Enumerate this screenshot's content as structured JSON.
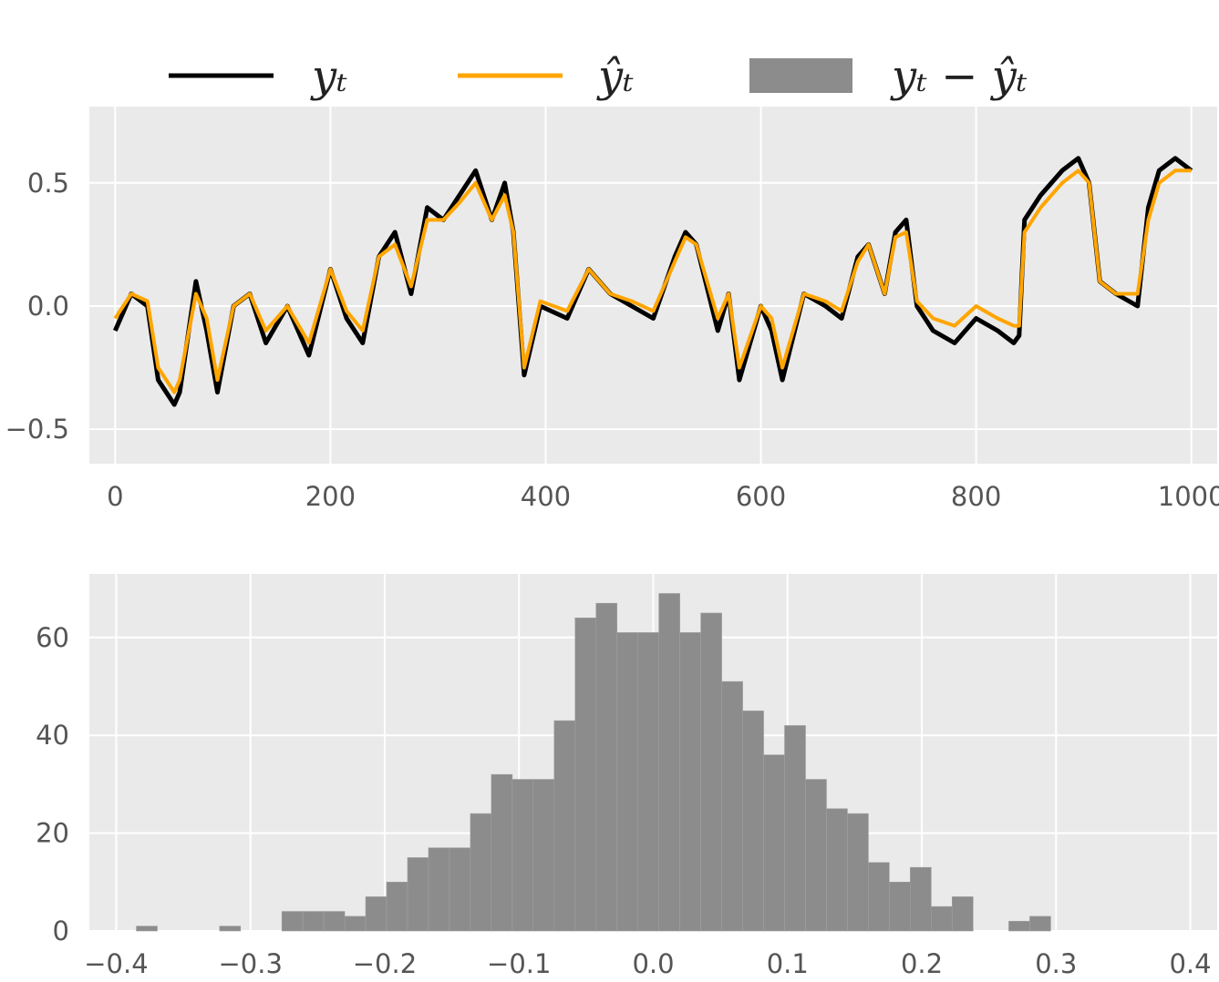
{
  "legend": {
    "items": [
      {
        "label": "yₜ",
        "color": "#000000",
        "kind": "line"
      },
      {
        "label": "ŷₜ",
        "color": "#FFA500",
        "kind": "line"
      },
      {
        "label": "yₜ − ŷₜ",
        "color": "#8C8C8C",
        "kind": "patch"
      }
    ]
  },
  "colors": {
    "panel_bg": "#EAEAEA",
    "grid": "#FFFFFF",
    "observed": "#000000",
    "predicted": "#FFA500",
    "hist": "#8C8C8C"
  },
  "chart_data": [
    {
      "type": "line",
      "grid": true,
      "xlim": [
        -24,
        1024
      ],
      "ylim": [
        -0.64,
        0.81
      ],
      "xticks": [
        0,
        200,
        400,
        600,
        800,
        1000
      ],
      "xtick_labels": [
        "0",
        "200",
        "400",
        "600",
        "800",
        "1000"
      ],
      "yticks": [
        -0.5,
        0.0,
        0.5
      ],
      "ytick_labels": [
        "−0.5",
        "0.0",
        "0.5"
      ],
      "series": [
        {
          "name": "yₜ",
          "color": "#000000",
          "x": [
            0,
            15,
            30,
            40,
            55,
            60,
            75,
            85,
            95,
            110,
            125,
            140,
            160,
            180,
            200,
            215,
            230,
            245,
            260,
            275,
            290,
            305,
            320,
            335,
            350,
            362,
            370,
            380,
            395,
            420,
            440,
            460,
            480,
            500,
            520,
            530,
            540,
            560,
            570,
            580,
            600,
            610,
            620,
            640,
            660,
            675,
            690,
            700,
            715,
            725,
            735,
            745,
            760,
            780,
            800,
            820,
            835,
            840,
            845,
            860,
            880,
            895,
            905,
            915,
            930,
            950,
            960,
            970,
            985,
            1000
          ],
          "y": [
            -0.1,
            0.05,
            0.0,
            -0.3,
            -0.4,
            -0.35,
            0.1,
            -0.1,
            -0.35,
            0.0,
            0.05,
            -0.15,
            0.0,
            -0.2,
            0.15,
            -0.05,
            -0.15,
            0.2,
            0.3,
            0.05,
            0.4,
            0.35,
            0.45,
            0.55,
            0.35,
            0.5,
            0.3,
            -0.28,
            0.0,
            -0.05,
            0.15,
            0.05,
            0.0,
            -0.05,
            0.2,
            0.3,
            0.25,
            -0.1,
            0.05,
            -0.3,
            0.0,
            -0.1,
            -0.3,
            0.05,
            0.0,
            -0.05,
            0.2,
            0.25,
            0.05,
            0.3,
            0.35,
            0.0,
            -0.1,
            -0.15,
            -0.05,
            -0.1,
            -0.15,
            -0.12,
            0.35,
            0.45,
            0.55,
            0.6,
            0.5,
            0.1,
            0.05,
            0.0,
            0.4,
            0.55,
            0.6,
            0.55
          ]
        },
        {
          "name": "ŷₜ",
          "color": "#FFA500",
          "x": [
            0,
            15,
            30,
            40,
            55,
            60,
            75,
            85,
            95,
            110,
            125,
            140,
            160,
            180,
            200,
            215,
            230,
            245,
            260,
            275,
            290,
            305,
            320,
            335,
            350,
            362,
            370,
            380,
            395,
            420,
            440,
            460,
            480,
            500,
            520,
            530,
            540,
            560,
            570,
            580,
            600,
            610,
            620,
            640,
            660,
            675,
            690,
            700,
            715,
            725,
            735,
            745,
            760,
            780,
            800,
            820,
            835,
            840,
            845,
            860,
            880,
            895,
            905,
            915,
            930,
            950,
            960,
            970,
            985,
            1000
          ],
          "y": [
            -0.05,
            0.05,
            0.02,
            -0.25,
            -0.35,
            -0.3,
            0.05,
            -0.05,
            -0.3,
            0.0,
            0.05,
            -0.1,
            0.0,
            -0.15,
            0.15,
            -0.02,
            -0.1,
            0.2,
            0.25,
            0.08,
            0.35,
            0.35,
            0.42,
            0.5,
            0.35,
            0.45,
            0.3,
            -0.25,
            0.02,
            -0.02,
            0.15,
            0.05,
            0.02,
            -0.02,
            0.18,
            0.28,
            0.25,
            -0.05,
            0.05,
            -0.25,
            0.0,
            -0.05,
            -0.25,
            0.05,
            0.02,
            -0.02,
            0.18,
            0.25,
            0.05,
            0.28,
            0.3,
            0.02,
            -0.05,
            -0.08,
            0.0,
            -0.05,
            -0.08,
            -0.08,
            0.3,
            0.4,
            0.5,
            0.55,
            0.5,
            0.1,
            0.05,
            0.05,
            0.35,
            0.5,
            0.55,
            0.55
          ]
        }
      ]
    },
    {
      "type": "bar",
      "grid": true,
      "xlim": [
        -0.42,
        0.42
      ],
      "ylim": [
        0,
        73
      ],
      "xticks": [
        -0.4,
        -0.3,
        -0.2,
        -0.1,
        0.0,
        0.1,
        0.2,
        0.3,
        0.4
      ],
      "xtick_labels": [
        "−0.4",
        "−0.3",
        "−0.2",
        "−0.1",
        "0.0",
        "0.1",
        "0.2",
        "0.3",
        "0.4"
      ],
      "yticks": [
        0,
        20,
        40,
        60
      ],
      "ytick_labels": [
        "0",
        "20",
        "40",
        "60"
      ],
      "bin_width": 0.0156,
      "bin_left": [
        -0.385,
        -0.323,
        -0.2766,
        -0.261,
        -0.2454,
        -0.2298,
        -0.2142,
        -0.1986,
        -0.183,
        -0.1674,
        -0.1518,
        -0.1362,
        -0.1206,
        -0.105,
        -0.0894,
        -0.0738,
        -0.0582,
        -0.0426,
        -0.027,
        -0.0114,
        0.0042,
        0.0198,
        0.0354,
        0.051,
        0.0666,
        0.0822,
        0.0978,
        0.1134,
        0.129,
        0.1446,
        0.1602,
        0.1758,
        0.1914,
        0.207,
        0.2226,
        0.2648,
        0.2804
      ],
      "counts": [
        1,
        1,
        4,
        4,
        4,
        3,
        7,
        10,
        15,
        17,
        17,
        24,
        32,
        31,
        31,
        43,
        64,
        67,
        61,
        61,
        69,
        61,
        65,
        51,
        45,
        36,
        42,
        31,
        25,
        24,
        14,
        10,
        13,
        5,
        7,
        2,
        3
      ]
    }
  ]
}
